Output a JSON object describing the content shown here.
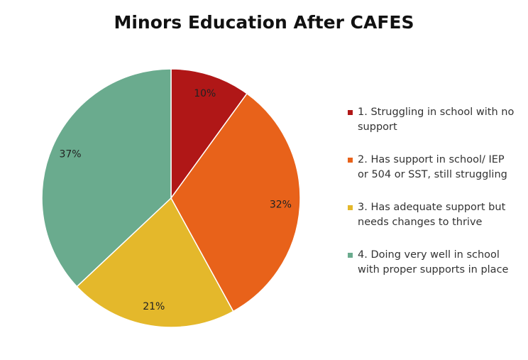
{
  "chart_data": {
    "type": "pie",
    "title": "Minors Education After CAFES",
    "categories": [
      "1. Struggling in school with no support",
      "2. Has support in school/ IEP or 504 or SST, still struggling",
      "3. Has adequate support but needs changes to thrive",
      "4. Doing very well in school with proper supports in place"
    ],
    "values": [
      10,
      32,
      21,
      37
    ],
    "value_labels": [
      "10%",
      "32%",
      "21%",
      "37%"
    ],
    "colors": [
      "#b01717",
      "#e8621a",
      "#e4b82b",
      "#6aab8e"
    ],
    "legend": "right"
  }
}
